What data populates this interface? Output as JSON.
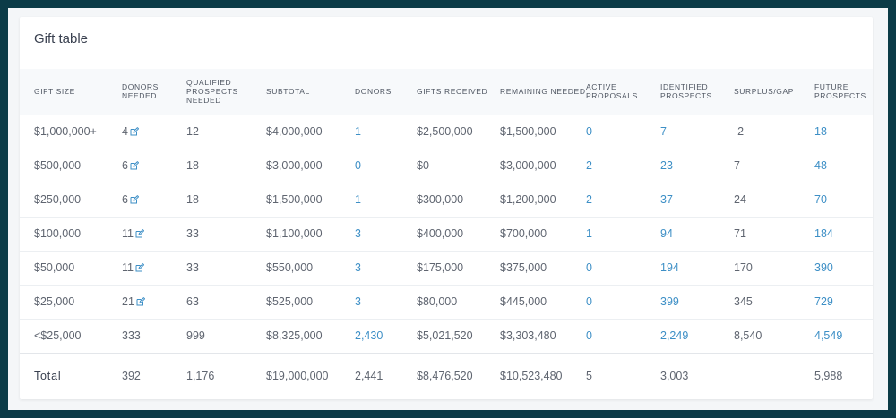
{
  "title": "Gift table",
  "columns": [
    "GIFT SIZE",
    "DONORS NEEDED",
    "QUALIFIED PROSPECTS NEEDED",
    "SUBTOTAL",
    "DONORS",
    "GIFTS RECEIVED",
    "REMAINING NEEDED",
    "ACTIVE PROPOSALS",
    "IDENTIFIED PROSPECTS",
    "SURPLUS/GAP",
    "FUTURE PROSPECTS"
  ],
  "rows": [
    {
      "gift_size": "$1,000,000+",
      "donors_needed": "4",
      "editable": true,
      "qualified": "12",
      "subtotal": "$4,000,000",
      "donors": "1",
      "gifts_received": "$2,500,000",
      "remaining": "$1,500,000",
      "active": "0",
      "identified": "7",
      "surplus": "-2",
      "future": "18"
    },
    {
      "gift_size": "$500,000",
      "donors_needed": "6",
      "editable": true,
      "qualified": "18",
      "subtotal": "$3,000,000",
      "donors": "0",
      "gifts_received": "$0",
      "remaining": "$3,000,000",
      "active": "2",
      "identified": "23",
      "surplus": "7",
      "future": "48"
    },
    {
      "gift_size": "$250,000",
      "donors_needed": "6",
      "editable": true,
      "qualified": "18",
      "subtotal": "$1,500,000",
      "donors": "1",
      "gifts_received": "$300,000",
      "remaining": "$1,200,000",
      "active": "2",
      "identified": "37",
      "surplus": "24",
      "future": "70"
    },
    {
      "gift_size": "$100,000",
      "donors_needed": "11",
      "editable": true,
      "qualified": "33",
      "subtotal": "$1,100,000",
      "donors": "3",
      "gifts_received": "$400,000",
      "remaining": "$700,000",
      "active": "1",
      "identified": "94",
      "surplus": "71",
      "future": "184"
    },
    {
      "gift_size": "$50,000",
      "donors_needed": "11",
      "editable": true,
      "qualified": "33",
      "subtotal": "$550,000",
      "donors": "3",
      "gifts_received": "$175,000",
      "remaining": "$375,000",
      "active": "0",
      "identified": "194",
      "surplus": "170",
      "future": "390"
    },
    {
      "gift_size": "$25,000",
      "donors_needed": "21",
      "editable": true,
      "qualified": "63",
      "subtotal": "$525,000",
      "donors": "3",
      "gifts_received": "$80,000",
      "remaining": "$445,000",
      "active": "0",
      "identified": "399",
      "surplus": "345",
      "future": "729"
    },
    {
      "gift_size": "<$25,000",
      "donors_needed": "333",
      "editable": false,
      "qualified": "999",
      "subtotal": "$8,325,000",
      "donors": "2,430",
      "gifts_received": "$5,021,520",
      "remaining": "$3,303,480",
      "active": "0",
      "identified": "2,249",
      "surplus": "8,540",
      "future": "4,549"
    }
  ],
  "total": {
    "label": "Total",
    "donors_needed": "392",
    "qualified": "1,176",
    "subtotal": "$19,000,000",
    "donors": "2,441",
    "gifts_received": "$8,476,520",
    "remaining": "$10,523,480",
    "active": "5",
    "identified": "3,003",
    "surplus": "",
    "future": "5,988"
  },
  "colors": {
    "background": "#0b3b47",
    "link": "#3d8fc6",
    "text": "#5f6570",
    "header_bg": "#f7f9fb"
  },
  "icons": {
    "edit": "edit-icon"
  }
}
